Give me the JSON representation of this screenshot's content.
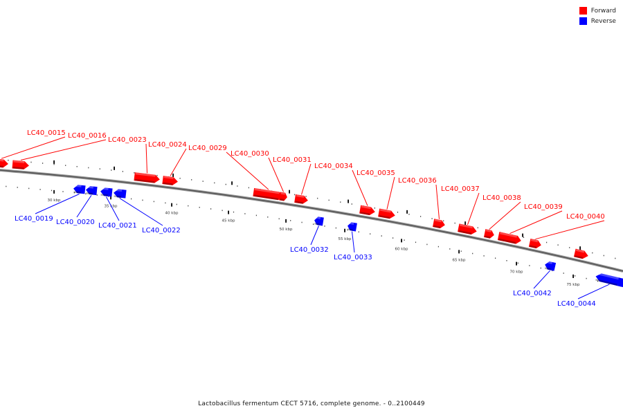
{
  "legend": {
    "forward_label": "Forward",
    "reverse_label": "Reverse",
    "forward_color": "#ff0000",
    "reverse_color": "#0000ff"
  },
  "caption": "Lactobacillus fermentum CECT 5716, complete genome. - 0..2100449",
  "scale": {
    "unit": "kbp",
    "tick_labels": [
      "30 kbp",
      "35 kbp",
      "40 kbp",
      "45 kbp",
      "50 kbp",
      "55 kbp",
      "60 kbp",
      "65 kbp",
      "70 kbp",
      "75 kbp"
    ]
  },
  "genes": [
    {
      "id": "LC40_0015",
      "strand": "forward"
    },
    {
      "id": "LC40_0016",
      "strand": "forward"
    },
    {
      "id": "LC40_0019",
      "strand": "reverse"
    },
    {
      "id": "LC40_0020",
      "strand": "reverse"
    },
    {
      "id": "LC40_0021",
      "strand": "reverse"
    },
    {
      "id": "LC40_0022",
      "strand": "reverse"
    },
    {
      "id": "LC40_0023",
      "strand": "forward"
    },
    {
      "id": "LC40_0024",
      "strand": "forward"
    },
    {
      "id": "LC40_0029",
      "strand": "forward"
    },
    {
      "id": "LC40_0030",
      "strand": "forward"
    },
    {
      "id": "LC40_0031",
      "strand": "forward"
    },
    {
      "id": "LC40_0032",
      "strand": "reverse"
    },
    {
      "id": "LC40_0033",
      "strand": "reverse"
    },
    {
      "id": "LC40_0034",
      "strand": "forward"
    },
    {
      "id": "LC40_0035",
      "strand": "forward"
    },
    {
      "id": "LC40_0036",
      "strand": "forward"
    },
    {
      "id": "LC40_0037",
      "strand": "forward"
    },
    {
      "id": "LC40_0038",
      "strand": "forward"
    },
    {
      "id": "LC40_0039",
      "strand": "forward"
    },
    {
      "id": "LC40_0040",
      "strand": "forward"
    },
    {
      "id": "LC40_0042",
      "strand": "reverse"
    },
    {
      "id": "LC40_0044",
      "strand": "reverse"
    }
  ]
}
